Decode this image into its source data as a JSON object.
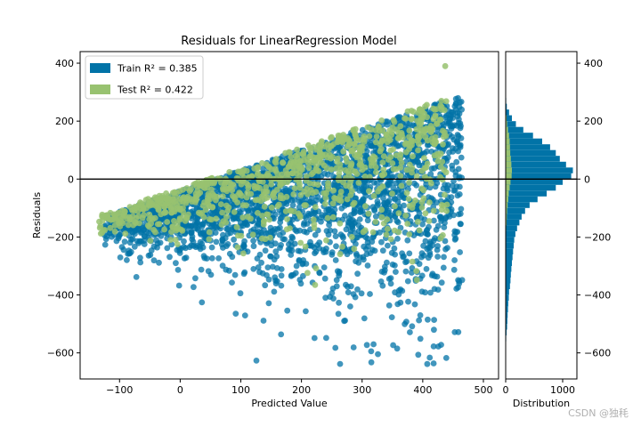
{
  "chart_data": {
    "type": "scatter",
    "title": "Residuals for LinearRegression Model",
    "xlabel": "Predicted Value",
    "ylabel": "Residuals",
    "xlim": [
      -165,
      525
    ],
    "ylim": [
      -690,
      440
    ],
    "xticks": [
      -100,
      0,
      100,
      200,
      300,
      400,
      500
    ],
    "xtick_labels": [
      "−100",
      "0",
      "100",
      "200",
      "300",
      "400",
      "500"
    ],
    "yticks": [
      -600,
      -400,
      -200,
      0,
      200,
      400
    ],
    "ytick_labels": [
      "−600",
      "−400",
      "−200",
      "0",
      "200",
      "400"
    ],
    "zero_line": 0,
    "legend_position": "upper-left",
    "series": [
      {
        "name": "Train",
        "legend_label": "Train R² = 0.385",
        "color": "#0173a7",
        "alpha": 0.75,
        "region": {
          "x_min": -125,
          "x_max": 465,
          "lower_edge_at_x_min": -140,
          "upper_edge_at_x_min": -130,
          "upper_edge_at_x_max": 290,
          "lower_edge_min": -640
        }
      },
      {
        "name": "Test",
        "legend_label": "Test R² = 0.422",
        "color": "#98c270",
        "alpha": 0.85,
        "region": {
          "x_min": -135,
          "x_max": 440,
          "upper_edge_at_x_max": 390,
          "lower_edge_min": -560
        }
      }
    ],
    "histogram": {
      "xlabel": "Distribution",
      "xlim": [
        0,
        1250
      ],
      "xticks": [
        0,
        1000
      ],
      "xtick_labels": [
        "0",
        "1000"
      ],
      "bins": [
        {
          "y": 270,
          "train": 10,
          "test": 0
        },
        {
          "y": 250,
          "train": 20,
          "test": 0
        },
        {
          "y": 230,
          "train": 60,
          "test": 5
        },
        {
          "y": 210,
          "train": 110,
          "test": 15
        },
        {
          "y": 190,
          "train": 180,
          "test": 25
        },
        {
          "y": 170,
          "train": 310,
          "test": 40
        },
        {
          "y": 150,
          "train": 480,
          "test": 60
        },
        {
          "y": 130,
          "train": 640,
          "test": 70
        },
        {
          "y": 110,
          "train": 780,
          "test": 75
        },
        {
          "y": 90,
          "train": 880,
          "test": 80
        },
        {
          "y": 70,
          "train": 950,
          "test": 90
        },
        {
          "y": 50,
          "train": 1060,
          "test": 100
        },
        {
          "y": 30,
          "train": 1180,
          "test": 110
        },
        {
          "y": 10,
          "train": 1150,
          "test": 105
        },
        {
          "y": -10,
          "train": 1000,
          "test": 85
        },
        {
          "y": -30,
          "train": 880,
          "test": 70
        },
        {
          "y": -50,
          "train": 720,
          "test": 55
        },
        {
          "y": -70,
          "train": 560,
          "test": 45
        },
        {
          "y": -90,
          "train": 420,
          "test": 35
        },
        {
          "y": -110,
          "train": 340,
          "test": 25
        },
        {
          "y": -130,
          "train": 280,
          "test": 20
        },
        {
          "y": -150,
          "train": 240,
          "test": 15
        },
        {
          "y": -170,
          "train": 200,
          "test": 10
        },
        {
          "y": -190,
          "train": 170,
          "test": 8
        },
        {
          "y": -210,
          "train": 150,
          "test": 6
        },
        {
          "y": -230,
          "train": 140,
          "test": 5
        },
        {
          "y": -250,
          "train": 130,
          "test": 5
        },
        {
          "y": -270,
          "train": 120,
          "test": 4
        },
        {
          "y": -290,
          "train": 110,
          "test": 4
        },
        {
          "y": -310,
          "train": 100,
          "test": 3
        },
        {
          "y": -330,
          "train": 90,
          "test": 3
        },
        {
          "y": -350,
          "train": 85,
          "test": 2
        },
        {
          "y": -370,
          "train": 75,
          "test": 2
        },
        {
          "y": -390,
          "train": 60,
          "test": 2
        },
        {
          "y": -410,
          "train": 55,
          "test": 1
        },
        {
          "y": -430,
          "train": 45,
          "test": 1
        },
        {
          "y": -450,
          "train": 40,
          "test": 1
        },
        {
          "y": -470,
          "train": 35,
          "test": 0
        },
        {
          "y": -490,
          "train": 30,
          "test": 0
        },
        {
          "y": -510,
          "train": 25,
          "test": 0
        },
        {
          "y": -530,
          "train": 15,
          "test": 0
        },
        {
          "y": -550,
          "train": 10,
          "test": 0
        },
        {
          "y": -570,
          "train": 5,
          "test": 0
        },
        {
          "y": -590,
          "train": 3,
          "test": 0
        }
      ]
    }
  },
  "watermark": "CSDN @独秏"
}
